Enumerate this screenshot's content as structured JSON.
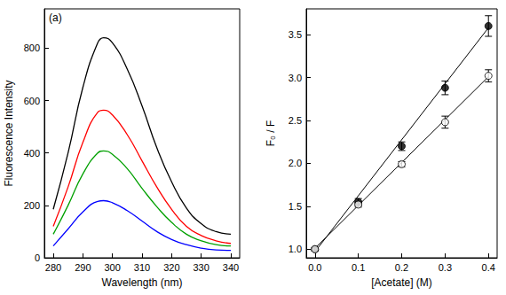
{
  "chart_data": [
    {
      "type": "line",
      "annotation": "(a)",
      "x_label": "Wavelength (nm)",
      "y_label": "Fluorescence Intensity",
      "x": [
        280,
        285,
        290,
        295,
        297,
        300,
        305,
        310,
        315,
        320,
        325,
        330,
        335,
        340
      ],
      "series": [
        {
          "color": "#000000",
          "line_style": "solid",
          "values": [
            185,
            400,
            650,
            820,
            840,
            820,
            720,
            580,
            420,
            290,
            190,
            130,
            100,
            90
          ]
        },
        {
          "color": "#ff0000",
          "line_style": "solid",
          "values": [
            120,
            270,
            440,
            555,
            563,
            545,
            470,
            370,
            270,
            185,
            120,
            85,
            65,
            55
          ]
        },
        {
          "color": "#00a000",
          "line_style": "solid",
          "values": [
            90,
            200,
            320,
            400,
            408,
            395,
            340,
            265,
            195,
            135,
            90,
            65,
            50,
            45
          ]
        },
        {
          "color": "#0000ff",
          "line_style": "solid",
          "values": [
            45,
            110,
            175,
            215,
            218,
            210,
            180,
            140,
            100,
            70,
            50,
            37,
            30,
            28
          ]
        }
      ],
      "xlim": [
        277,
        343
      ],
      "xticks": [
        280,
        290,
        300,
        310,
        320,
        330,
        340
      ],
      "ylim": [
        0,
        950
      ],
      "yticks": [
        0,
        200,
        400,
        600,
        800
      ],
      "grid": false
    },
    {
      "type": "scatter",
      "x_label": "[Acetate] (M)",
      "y_label": "F₀ / F",
      "x": [
        0,
        0.1,
        0.2,
        0.3,
        0.4
      ],
      "series": [
        {
          "color": "#000000",
          "marker": "filled",
          "values": [
            1.0,
            1.55,
            2.2,
            2.88,
            3.6
          ],
          "errors": [
            0.02,
            0.04,
            0.05,
            0.08,
            0.12
          ],
          "fit": {
            "x": [
              0,
              0.4
            ],
            "values": [
              0.97,
              3.58
            ]
          }
        },
        {
          "color": "#000000",
          "marker": "open",
          "values": [
            1.0,
            1.52,
            1.99,
            2.48,
            3.02
          ],
          "errors": [
            0.02,
            0.03,
            0.03,
            0.07,
            0.07
          ],
          "fit": {
            "x": [
              0,
              0.4
            ],
            "values": [
              1.01,
              3.01
            ]
          }
        }
      ],
      "xlim": [
        -0.02,
        0.42
      ],
      "xticks": [
        {
          "value": 0,
          "label": "0.0"
        },
        {
          "value": 0.1,
          "label": "0.1"
        },
        {
          "value": 0.2,
          "label": "0.2"
        },
        {
          "value": 0.3,
          "label": "0.3"
        },
        {
          "value": 0.4,
          "label": "0.4"
        }
      ],
      "ylim": [
        0.9,
        3.8
      ],
      "yticks": [
        {
          "value": 1,
          "label": "1.0"
        },
        {
          "value": 1.5,
          "label": "1.5"
        },
        {
          "value": 2,
          "label": "2.0"
        },
        {
          "value": 2.5,
          "label": "2.5"
        },
        {
          "value": 3,
          "label": "3.0"
        },
        {
          "value": 3.5,
          "label": "3.5"
        }
      ],
      "grid": false
    }
  ]
}
